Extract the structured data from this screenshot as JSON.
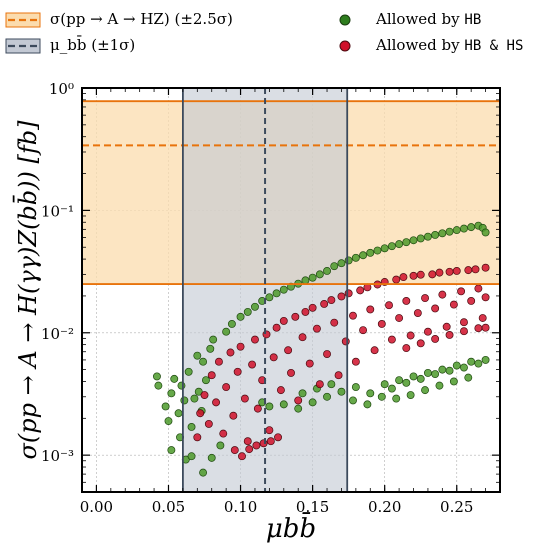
{
  "legend": {
    "items": [
      {
        "label": "σ(pp → A → HZ) (±2.5σ)",
        "kind": "band-dashed",
        "color": "#e8730c",
        "fill": "#fbdcae"
      },
      {
        "label": "μ_bb̄ (±1σ)",
        "kind": "band-dashed",
        "color": "#3c4a5c",
        "fill": "#c3c9d4"
      },
      {
        "label_prefix": "Allowed by ",
        "label_mono": "HB",
        "kind": "marker",
        "color": "#2e7d1e"
      },
      {
        "label_prefix": "Allowed by ",
        "label_mono": "HB & HS",
        "kind": "marker",
        "color": "#d0102a"
      }
    ]
  },
  "chart_data": {
    "type": "scatter",
    "xlabel": "μbb̄",
    "ylabel": "σ(pp → A → H(γγ)Z(bb̄)) [fb]",
    "x_ticks": [
      "0.00",
      "0.05",
      "0.10",
      "0.15",
      "0.20",
      "0.25"
    ],
    "y_ticks": [
      "10⁻³",
      "10⁻²",
      "10⁻¹",
      "10⁰"
    ],
    "xlim": [
      -0.01,
      0.28
    ],
    "ylim": [
      0.0005,
      1.0
    ],
    "y_scale": "log",
    "grid": true,
    "legend_position": "top (above plot)",
    "bands": [
      {
        "name": "σ(pp → A → HZ) (±2.5σ)",
        "axis": "y",
        "low": 0.025,
        "center": 0.34,
        "high": 0.78,
        "color": "#e8730c",
        "fill": "#fbdcae"
      },
      {
        "name": "μbb̄ (±1σ)",
        "axis": "x",
        "low": 0.06,
        "center": 0.117,
        "high": 0.174,
        "color": "#3c4a5c",
        "fill": "#c3c9d4"
      }
    ],
    "series": [
      {
        "name": "Allowed by HB",
        "color": "#4c9a2a",
        "edge": "#1f4a10",
        "points": [
          [
            0.042,
            0.0044
          ],
          [
            0.043,
            0.0037
          ],
          [
            0.048,
            0.0025
          ],
          [
            0.05,
            0.0019
          ],
          [
            0.052,
            0.0032
          ],
          [
            0.054,
            0.0042
          ],
          [
            0.057,
            0.0022
          ],
          [
            0.058,
            0.0014
          ],
          [
            0.059,
            0.0037
          ],
          [
            0.061,
            0.0028
          ],
          [
            0.064,
            0.0048
          ],
          [
            0.066,
            0.0017
          ],
          [
            0.068,
            0.0029
          ],
          [
            0.07,
            0.0065
          ],
          [
            0.071,
            0.0033
          ],
          [
            0.073,
            0.0023
          ],
          [
            0.074,
            0.0058
          ],
          [
            0.076,
            0.0041
          ],
          [
            0.079,
            0.0074
          ],
          [
            0.081,
            0.0088
          ],
          [
            0.074,
            0.00072
          ],
          [
            0.08,
            0.00095
          ],
          [
            0.086,
            0.0012
          ],
          [
            0.052,
            0.0011
          ],
          [
            0.062,
            0.00092
          ],
          [
            0.066,
            0.00098
          ],
          [
            0.09,
            0.0102
          ],
          [
            0.094,
            0.0118
          ],
          [
            0.1,
            0.0135
          ],
          [
            0.105,
            0.0148
          ],
          [
            0.11,
            0.0163
          ],
          [
            0.115,
            0.0182
          ],
          [
            0.12,
            0.0195
          ],
          [
            0.125,
            0.021
          ],
          [
            0.13,
            0.0225
          ],
          [
            0.135,
            0.0238
          ],
          [
            0.14,
            0.0252
          ],
          [
            0.145,
            0.0268
          ],
          [
            0.15,
            0.0282
          ],
          [
            0.155,
            0.03
          ],
          [
            0.16,
            0.032
          ],
          [
            0.165,
            0.035
          ],
          [
            0.17,
            0.037
          ],
          [
            0.175,
            0.039
          ],
          [
            0.18,
            0.041
          ],
          [
            0.185,
            0.043
          ],
          [
            0.19,
            0.045
          ],
          [
            0.195,
            0.047
          ],
          [
            0.2,
            0.049
          ],
          [
            0.205,
            0.051
          ],
          [
            0.21,
            0.053
          ],
          [
            0.215,
            0.055
          ],
          [
            0.22,
            0.057
          ],
          [
            0.225,
            0.059
          ],
          [
            0.23,
            0.061
          ],
          [
            0.235,
            0.063
          ],
          [
            0.24,
            0.065
          ],
          [
            0.245,
            0.067
          ],
          [
            0.25,
            0.069
          ],
          [
            0.255,
            0.071
          ],
          [
            0.26,
            0.073
          ],
          [
            0.265,
            0.075
          ],
          [
            0.268,
            0.072
          ],
          [
            0.27,
            0.066
          ],
          [
            0.115,
            0.0027
          ],
          [
            0.12,
            0.0025
          ],
          [
            0.13,
            0.0026
          ],
          [
            0.14,
            0.0024
          ],
          [
            0.15,
            0.0027
          ],
          [
            0.16,
            0.003
          ],
          [
            0.17,
            0.0033
          ],
          [
            0.18,
            0.0036
          ],
          [
            0.19,
            0.0032
          ],
          [
            0.2,
            0.0038
          ],
          [
            0.21,
            0.0041
          ],
          [
            0.22,
            0.0044
          ],
          [
            0.23,
            0.0047
          ],
          [
            0.24,
            0.005
          ],
          [
            0.25,
            0.0054
          ],
          [
            0.26,
            0.0058
          ],
          [
            0.27,
            0.006
          ],
          [
            0.205,
            0.0035
          ],
          [
            0.215,
            0.0039
          ],
          [
            0.225,
            0.0042
          ],
          [
            0.235,
            0.0046
          ],
          [
            0.245,
            0.0049
          ],
          [
            0.255,
            0.0052
          ],
          [
            0.265,
            0.0056
          ],
          [
            0.208,
            0.0029
          ],
          [
            0.218,
            0.0031
          ],
          [
            0.228,
            0.0034
          ],
          [
            0.238,
            0.0037
          ],
          [
            0.248,
            0.004
          ],
          [
            0.258,
            0.0043
          ],
          [
            0.178,
            0.0028
          ],
          [
            0.188,
            0.0026
          ],
          [
            0.198,
            0.003
          ],
          [
            0.143,
            0.0032
          ],
          [
            0.153,
            0.0035
          ],
          [
            0.163,
            0.0038
          ]
        ]
      },
      {
        "name": "Allowed by HB & HS",
        "color": "#d0102a",
        "edge": "#4a0a10",
        "points": [
          [
            0.07,
            0.0014
          ],
          [
            0.072,
            0.0022
          ],
          [
            0.075,
            0.0031
          ],
          [
            0.078,
            0.0018
          ],
          [
            0.08,
            0.0045
          ],
          [
            0.083,
            0.0027
          ],
          [
            0.085,
            0.0058
          ],
          [
            0.088,
            0.0015
          ],
          [
            0.09,
            0.0036
          ],
          [
            0.093,
            0.0069
          ],
          [
            0.095,
            0.0021
          ],
          [
            0.098,
            0.0048
          ],
          [
            0.1,
            0.0077
          ],
          [
            0.103,
            0.0029
          ],
          [
            0.105,
            0.0013
          ],
          [
            0.108,
            0.0055
          ],
          [
            0.11,
            0.0088
          ],
          [
            0.112,
            0.0024
          ],
          [
            0.115,
            0.0041
          ],
          [
            0.118,
            0.0097
          ],
          [
            0.12,
            0.0016
          ],
          [
            0.123,
            0.0063
          ],
          [
            0.125,
            0.011
          ],
          [
            0.128,
            0.0034
          ],
          [
            0.13,
            0.0125
          ],
          [
            0.133,
            0.0072
          ],
          [
            0.135,
            0.0047
          ],
          [
            0.138,
            0.0135
          ],
          [
            0.14,
            0.0028
          ],
          [
            0.143,
            0.0092
          ],
          [
            0.145,
            0.0148
          ],
          [
            0.148,
            0.0056
          ],
          [
            0.15,
            0.016
          ],
          [
            0.153,
            0.0108
          ],
          [
            0.155,
            0.0038
          ],
          [
            0.158,
            0.0172
          ],
          [
            0.16,
            0.0067
          ],
          [
            0.163,
            0.0185
          ],
          [
            0.165,
            0.0121
          ],
          [
            0.168,
            0.0045
          ],
          [
            0.17,
            0.0198
          ],
          [
            0.173,
            0.0085
          ],
          [
            0.175,
            0.021
          ],
          [
            0.178,
            0.0138
          ],
          [
            0.18,
            0.0058
          ],
          [
            0.183,
            0.0222
          ],
          [
            0.185,
            0.0105
          ],
          [
            0.188,
            0.0235
          ],
          [
            0.19,
            0.0155
          ],
          [
            0.193,
            0.0072
          ],
          [
            0.195,
            0.0248
          ],
          [
            0.198,
            0.0118
          ],
          [
            0.2,
            0.026
          ],
          [
            0.203,
            0.0168
          ],
          [
            0.205,
            0.0088
          ],
          [
            0.208,
            0.0272
          ],
          [
            0.21,
            0.0132
          ],
          [
            0.213,
            0.0285
          ],
          [
            0.215,
            0.0182
          ],
          [
            0.218,
            0.0095
          ],
          [
            0.22,
            0.0292
          ],
          [
            0.223,
            0.0145
          ],
          [
            0.225,
            0.0298
          ],
          [
            0.228,
            0.0192
          ],
          [
            0.23,
            0.0102
          ],
          [
            0.233,
            0.03
          ],
          [
            0.235,
            0.0158
          ],
          [
            0.238,
            0.031
          ],
          [
            0.24,
            0.0205
          ],
          [
            0.243,
            0.0112
          ],
          [
            0.245,
            0.0315
          ],
          [
            0.248,
            0.017
          ],
          [
            0.25,
            0.032
          ],
          [
            0.253,
            0.0218
          ],
          [
            0.255,
            0.0122
          ],
          [
            0.258,
            0.0325
          ],
          [
            0.26,
            0.0182
          ],
          [
            0.263,
            0.033
          ],
          [
            0.265,
            0.023
          ],
          [
            0.268,
            0.0132
          ],
          [
            0.27,
            0.034
          ],
          [
            0.27,
            0.0195
          ],
          [
            0.27,
            0.011
          ],
          [
            0.215,
            0.0075
          ],
          [
            0.225,
            0.0082
          ],
          [
            0.235,
            0.0089
          ],
          [
            0.245,
            0.0096
          ],
          [
            0.255,
            0.0103
          ],
          [
            0.265,
            0.0109
          ],
          [
            0.096,
            0.0011
          ],
          [
            0.101,
            0.00098
          ],
          [
            0.106,
            0.00112
          ],
          [
            0.111,
            0.0012
          ],
          [
            0.116,
            0.00125
          ],
          [
            0.121,
            0.0013
          ],
          [
            0.126,
            0.0014
          ]
        ]
      }
    ]
  }
}
